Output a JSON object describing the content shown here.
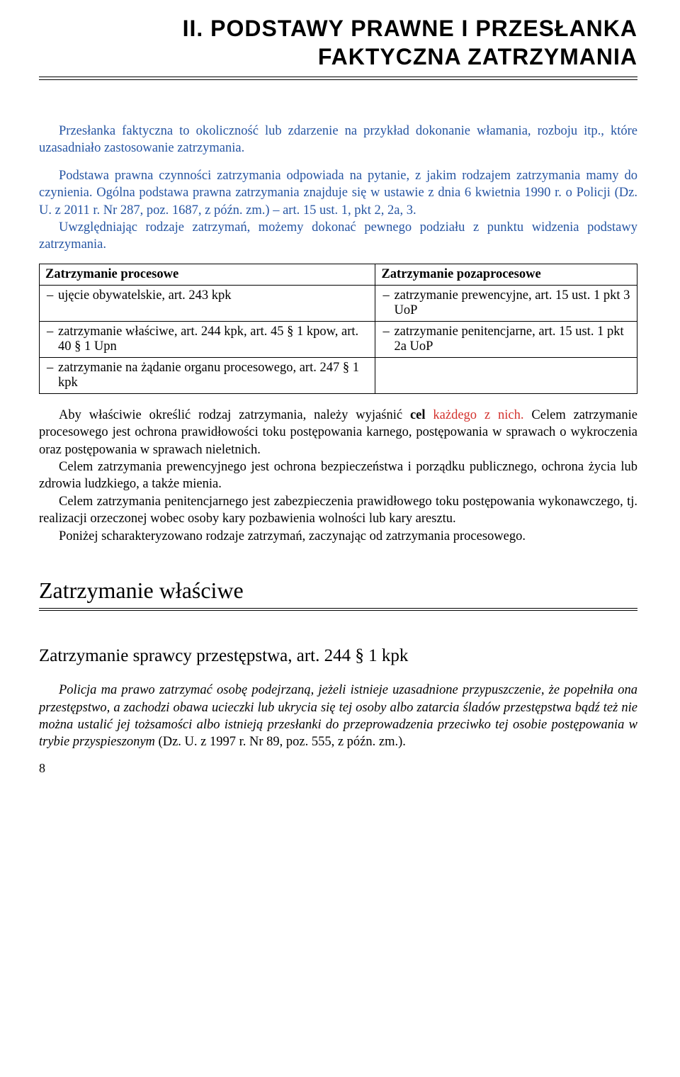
{
  "chapter": {
    "line1": "II. PODSTAWY PRAWNE I PRZESŁANKA",
    "line2": "FAKTYCZNA ZATRZYMANIA"
  },
  "para1": "Przesłanka faktyczna to okoliczność lub zdarzenie na przykład dokonanie włamania, rozboju itp., które uzasadniało zastosowanie zatrzymania.",
  "para2": "Podstawa prawna czynności zatrzymania odpowiada na pytanie, z jakim rodzajem zatrzymania mamy do czynienia. Ogólna podstawa prawna zatrzymania znajduje się w ustawie z dnia 6 kwietnia 1990 r. o Policji (Dz. U. z 2011 r. Nr 287, poz. 1687, z późn. zm.) – art. 15 ust. 1, pkt 2, 2a, 3.",
  "para3": "Uwzględniając rodzaje zatrzymań, możemy dokonać pewnego podziału z punktu widzenia podstawy zatrzymania.",
  "table": {
    "header_left": "Zatrzymanie procesowe",
    "header_right": "Zatrzymanie pozaprocesowe",
    "row1_left": "ujęcie obywatelskie, art. 243 kpk",
    "row1_right": "zatrzymanie prewencyjne, art. 15 ust. 1 pkt 3 UoP",
    "row2_left": "zatrzymanie właściwe, art. 244 kpk, art. 45 § 1 kpow, art. 40 § 1 Upn",
    "row2_right": "zatrzymanie penitencjarne, art. 15 ust. 1 pkt 2a UoP",
    "row3_left": "zatrzymanie na żądanie organu procesowego, art. 247 § 1 kpk"
  },
  "para4a": "Aby właściwie określić rodzaj zatrzymania, należy wyjaśnić ",
  "para4b_bold": "cel",
  "para4c_red": " każdego z nich.",
  "para4d": " Celem zatrzymanie procesowego jest ochrona prawidłowości toku postępowania karnego, postępowania w sprawach o wykroczenia oraz postępowania w sprawach nieletnich.",
  "para5": "Celem zatrzymania prewencyjnego jest ochrona bezpieczeństwa i porządku publicznego, ochrona życia lub zdrowia ludzkiego, a także mienia.",
  "para6": "Celem zatrzymania penitencjarnego jest zabezpieczenia prawidłowego toku postępowania wykonawczego, tj. realizacji orzeczonej wobec osoby kary pozbawienia wolności lub kary aresztu.",
  "para7": "Poniżej scharakteryzowano rodzaje zatrzymań, zaczynając od zatrzymania procesowego.",
  "section_title": "Zatrzymanie właściwe",
  "subsection_title": "Zatrzymanie sprawcy przestępstwa, art. 244 § 1 kpk",
  "para8a_it": "Policja ma prawo zatrzymać osobę podejrzaną, jeżeli istnieje uzasadnione przypuszczenie, że popełniła ona przestępstwo, a zachodzi obawa ucieczki lub ukrycia się tej osoby albo zatarcia śladów przestępstwa bądź też nie można ustalić jej tożsamości albo istnieją przesłanki do przeprowadzenia przeciwko tej osobie postępowania w trybie przyspieszonym ",
  "para8b": "(Dz. U. z 1997 r. Nr 89, poz. 555, z późn. zm.).",
  "page_number": "8"
}
